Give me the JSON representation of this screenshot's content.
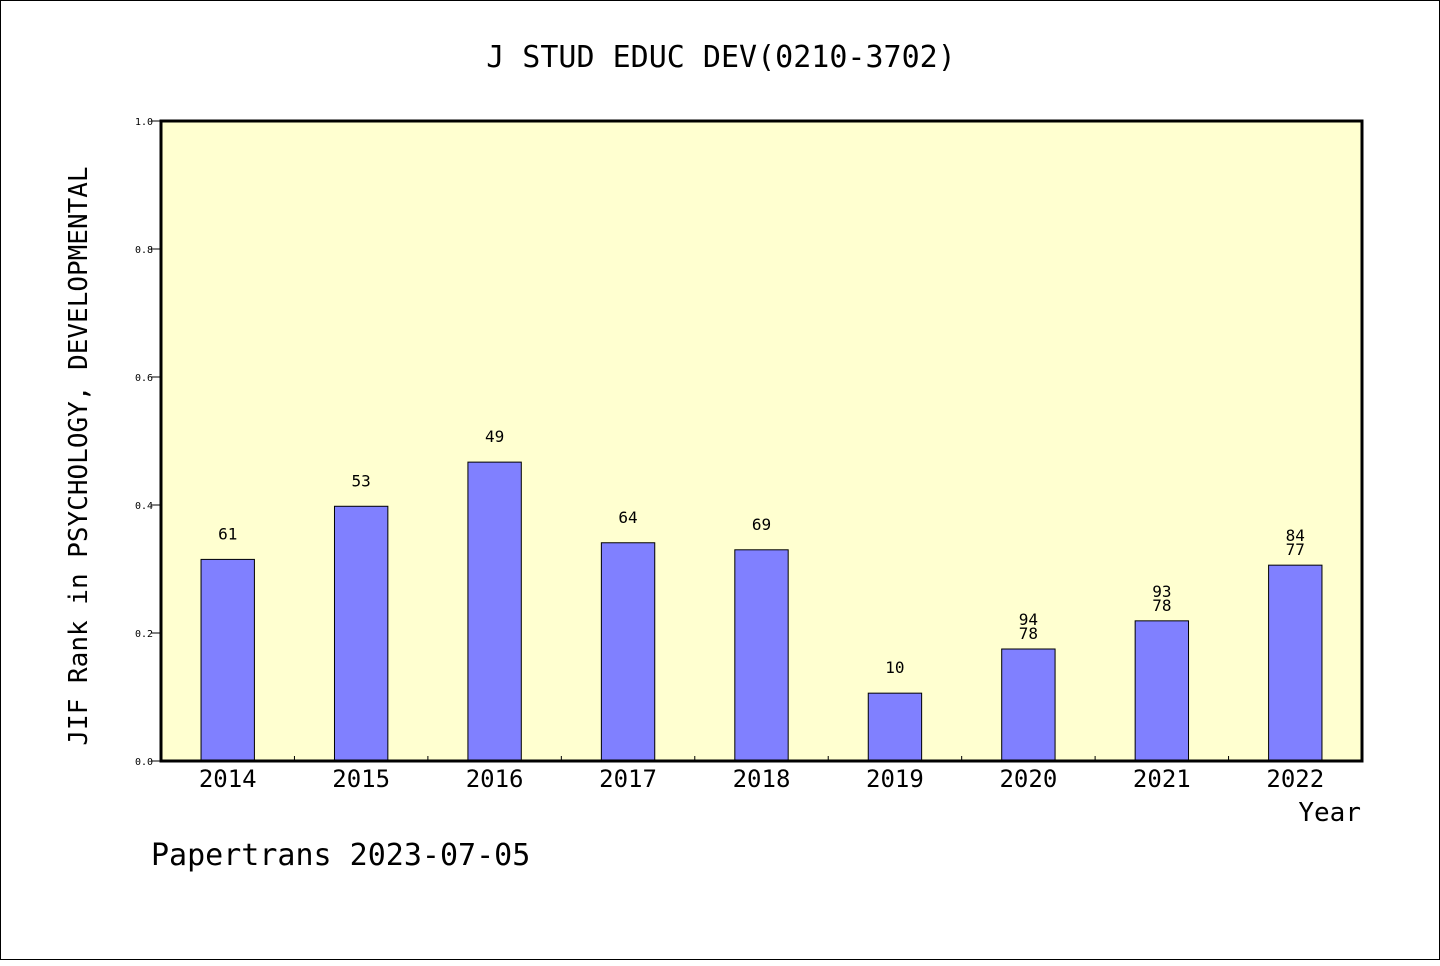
{
  "chart_data": {
    "type": "bar",
    "title": "J STUD EDUC DEV(0210-3702)",
    "xlabel": "Year",
    "ylabel": "JIF Rank in PSYCHOLOGY, DEVELOPMENTAL",
    "ylim": [
      0,
      1.0
    ],
    "yticks": [
      "0.0",
      "0.2",
      "0.4",
      "0.6",
      "0.8",
      "1.0"
    ],
    "categories": [
      "2014",
      "2015",
      "2016",
      "2017",
      "2018",
      "2019",
      "2020",
      "2021",
      "2022"
    ],
    "values": [
      0.315,
      0.398,
      0.467,
      0.341,
      0.33,
      0.106,
      0.175,
      0.219,
      0.306
    ],
    "labels": [
      [
        "61"
      ],
      [
        "53"
      ],
      [
        "49"
      ],
      [
        "64"
      ],
      [
        "69"
      ],
      [
        "10"
      ],
      [
        "94",
        "78"
      ],
      [
        "93",
        "78"
      ],
      [
        "84",
        "77"
      ]
    ],
    "bar_color": "#8080ff",
    "plot_background": "#ffffd0",
    "grid": false
  },
  "footer": "Papertrans 2023-07-05"
}
